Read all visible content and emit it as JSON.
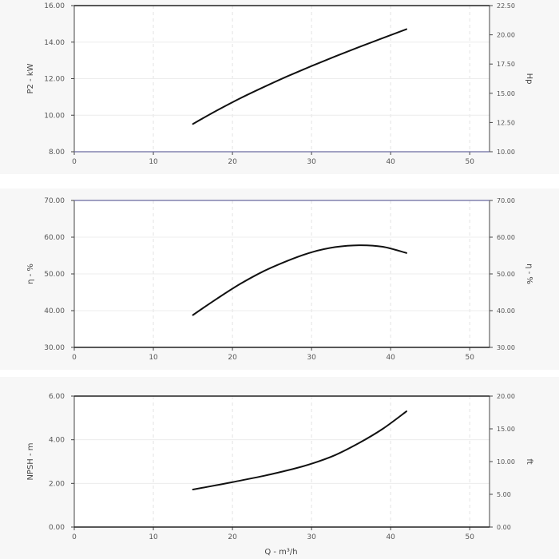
{
  "xlabel": "Q - m³/h",
  "chart_data": [
    {
      "type": "line",
      "ylabel": "P2 - kW",
      "ylabel_right": "Hp",
      "xlim": [
        0,
        52.5
      ],
      "ylim": [
        8,
        16
      ],
      "ylim_right": [
        10,
        22.5
      ],
      "x_ticks": [
        "0",
        "10",
        "20",
        "30",
        "40",
        "50"
      ],
      "y_ticks": [
        "8.00",
        "10.00",
        "12.00",
        "14.00",
        "16.00"
      ],
      "y_ticks_right": [
        "10.00",
        "12.50",
        "15.00",
        "17.50",
        "20.00",
        "22.50"
      ],
      "grid": true,
      "series": [
        {
          "x": [
            15,
            18,
            21,
            24,
            27,
            30,
            33,
            36,
            39,
            42
          ],
          "y": [
            9.52,
            10.25,
            10.93,
            11.55,
            12.14,
            12.69,
            13.22,
            13.73,
            14.22,
            14.71
          ]
        }
      ]
    },
    {
      "type": "line",
      "ylabel": "η - %",
      "ylabel_right": "η - %",
      "xlim": [
        0,
        52.5
      ],
      "ylim": [
        30,
        70
      ],
      "ylim_right": [
        30,
        70
      ],
      "x_ticks": [
        "0",
        "10",
        "20",
        "30",
        "40",
        "50"
      ],
      "y_ticks": [
        "30.00",
        "40.00",
        "50.00",
        "60.00",
        "70.00"
      ],
      "y_ticks_right": [
        "30.00",
        "40.00",
        "50.00",
        "60.00",
        "70.00"
      ],
      "grid": true,
      "series": [
        {
          "x": [
            15,
            18,
            21,
            24,
            27,
            30,
            33,
            36,
            39,
            42
          ],
          "y": [
            38.8,
            43.2,
            47.3,
            50.8,
            53.6,
            55.9,
            57.3,
            57.8,
            57.4,
            55.7
          ]
        }
      ]
    },
    {
      "type": "line",
      "ylabel": "NPSH - m",
      "ylabel_right": "ft",
      "xlim": [
        0,
        52.5
      ],
      "ylim": [
        0,
        6
      ],
      "ylim_right": [
        0,
        20
      ],
      "x_ticks": [
        "0",
        "10",
        "20",
        "30",
        "40",
        "50"
      ],
      "y_ticks": [
        "0.00",
        "2.00",
        "4.00",
        "6.00"
      ],
      "y_ticks_right": [
        "0.00",
        "5.00",
        "10.00",
        "15.00",
        "20.00"
      ],
      "grid": true,
      "series": [
        {
          "x": [
            15,
            18,
            21,
            24,
            27,
            30,
            33,
            36,
            39,
            42
          ],
          "y": [
            1.72,
            1.92,
            2.13,
            2.35,
            2.6,
            2.9,
            3.3,
            3.85,
            4.5,
            5.3
          ]
        }
      ]
    }
  ]
}
